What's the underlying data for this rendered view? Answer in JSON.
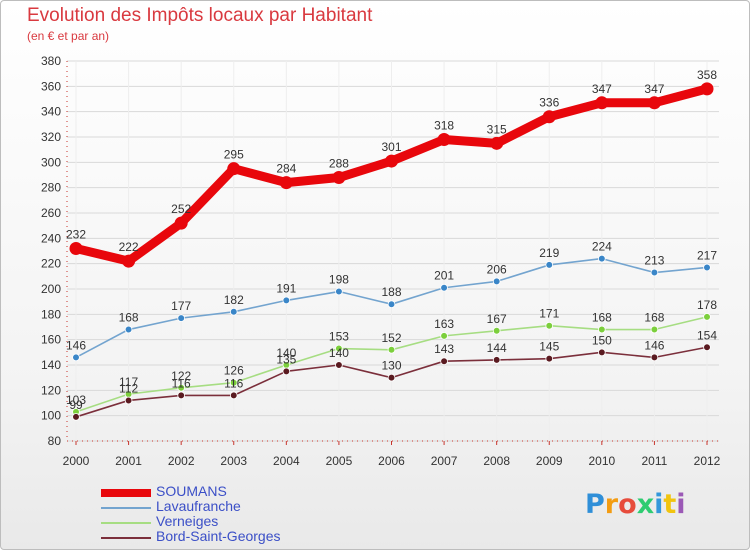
{
  "title": "Evolution des Impôts locaux par Habitant",
  "subtitle": "(en € et par an)",
  "logo_text": "Proxiti",
  "colors": {
    "title": "#d9393f",
    "axis": "#c7352d",
    "grid": "#d9d9d9",
    "label": "#333333",
    "legend_text": "#3b4fc7"
  },
  "chart_data": {
    "type": "line",
    "title": "Evolution des Impôts locaux par Habitant",
    "subtitle": "(en € et par an)",
    "xlabel": "",
    "ylabel": "",
    "ylim": [
      80,
      380
    ],
    "yticks": [
      80,
      100,
      120,
      140,
      160,
      180,
      200,
      220,
      240,
      260,
      280,
      300,
      320,
      340,
      360,
      380
    ],
    "grid": true,
    "legend_position": "bottom-left",
    "x": [
      "2000",
      "2001",
      "2002",
      "2003",
      "2004",
      "2005",
      "2006",
      "2007",
      "2008",
      "2009",
      "2010",
      "2011",
      "2012"
    ],
    "series": [
      {
        "name": "SOUMANS",
        "color": "#e8070c",
        "marker": "#e8070c",
        "bold": true,
        "values": [
          232,
          222,
          252,
          295,
          284,
          288,
          301,
          318,
          315,
          336,
          347,
          347,
          358
        ]
      },
      {
        "name": "Lavaufranche",
        "color": "#73a4cf",
        "marker": "#3a86c8",
        "bold": false,
        "values": [
          146,
          168,
          177,
          182,
          191,
          198,
          188,
          201,
          206,
          219,
          224,
          213,
          217
        ]
      },
      {
        "name": "Verneiges",
        "color": "#a6dd82",
        "marker": "#7ccf3c",
        "bold": false,
        "values": [
          103,
          117,
          122,
          126,
          140,
          153,
          152,
          163,
          167,
          171,
          168,
          168,
          178
        ]
      },
      {
        "name": "Bord-Saint-Georges",
        "color": "#7b2f3b",
        "marker": "#5a1a20",
        "bold": false,
        "values": [
          99,
          112,
          116,
          116,
          135,
          140,
          130,
          143,
          144,
          145,
          150,
          146,
          154
        ]
      }
    ]
  }
}
